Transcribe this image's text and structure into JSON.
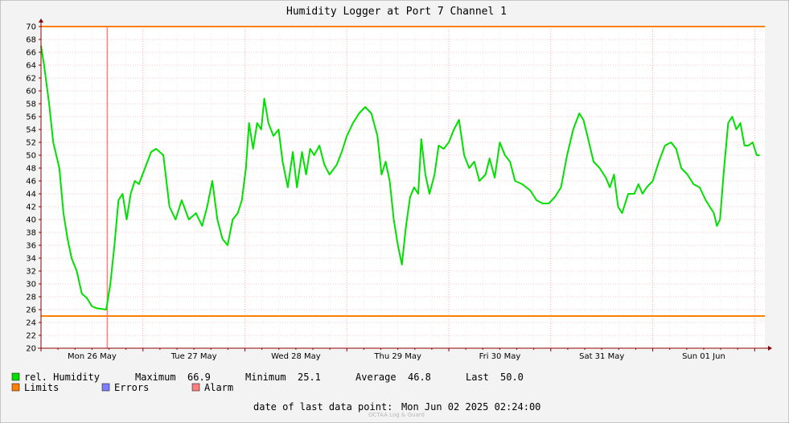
{
  "chart_data": {
    "type": "line",
    "title": "Humidity Logger at Port 7 Channel 1",
    "xlabel": "",
    "ylabel": "",
    "ylim": [
      20,
      70
    ],
    "y_ticks": [
      20,
      22,
      24,
      26,
      28,
      30,
      32,
      34,
      36,
      38,
      40,
      42,
      44,
      46,
      48,
      50,
      52,
      54,
      56,
      58,
      60,
      62,
      64,
      66,
      68,
      70
    ],
    "x_ticks": [
      {
        "label": "Mon 26 May",
        "day": 0.5
      },
      {
        "label": "Tue 27 May",
        "day": 1.5
      },
      {
        "label": "Wed 28 May",
        "day": 2.5
      },
      {
        "label": "Thu 29 May",
        "day": 3.5
      },
      {
        "label": "Fri 30 May",
        "day": 4.5
      },
      {
        "label": "Sat 31 May",
        "day": 5.5
      },
      {
        "label": "Sun 01 Jun",
        "day": 6.5
      }
    ],
    "x_range_days": [
      0,
      7.1
    ],
    "limits": {
      "upper": 70,
      "lower": 25,
      "color": "#ff7f00"
    },
    "alarm_marker_day": 0.65,
    "series": [
      {
        "name": "rel. Humidity",
        "color": "#00e000",
        "points": [
          [
            0.0,
            67.0
          ],
          [
            0.03,
            64.0
          ],
          [
            0.08,
            58.0
          ],
          [
            0.12,
            52.0
          ],
          [
            0.18,
            48.0
          ],
          [
            0.22,
            41.0
          ],
          [
            0.26,
            37.0
          ],
          [
            0.3,
            34.0
          ],
          [
            0.35,
            32.0
          ],
          [
            0.4,
            28.5
          ],
          [
            0.45,
            27.8
          ],
          [
            0.5,
            26.5
          ],
          [
            0.55,
            26.2
          ],
          [
            0.64,
            26.0
          ],
          [
            0.68,
            30.0
          ],
          [
            0.72,
            36.0
          ],
          [
            0.76,
            43.0
          ],
          [
            0.8,
            44.0
          ],
          [
            0.84,
            40.0
          ],
          [
            0.88,
            44.0
          ],
          [
            0.92,
            46.0
          ],
          [
            0.96,
            45.5
          ],
          [
            1.02,
            48.0
          ],
          [
            1.08,
            50.5
          ],
          [
            1.13,
            51.0
          ],
          [
            1.2,
            50.0
          ],
          [
            1.26,
            42.0
          ],
          [
            1.32,
            40.0
          ],
          [
            1.38,
            43.0
          ],
          [
            1.45,
            40.0
          ],
          [
            1.52,
            41.0
          ],
          [
            1.58,
            39.0
          ],
          [
            1.63,
            42.0
          ],
          [
            1.68,
            46.0
          ],
          [
            1.73,
            40.0
          ],
          [
            1.78,
            37.0
          ],
          [
            1.83,
            36.0
          ],
          [
            1.88,
            40.0
          ],
          [
            1.93,
            41.0
          ],
          [
            1.97,
            43.0
          ],
          [
            2.01,
            48.0
          ],
          [
            2.04,
            55.0
          ],
          [
            2.08,
            51.0
          ],
          [
            2.12,
            55.0
          ],
          [
            2.16,
            54.0
          ],
          [
            2.19,
            58.8
          ],
          [
            2.23,
            55.0
          ],
          [
            2.28,
            53.0
          ],
          [
            2.33,
            54.0
          ],
          [
            2.37,
            49.0
          ],
          [
            2.42,
            45.0
          ],
          [
            2.47,
            50.5
          ],
          [
            2.51,
            45.0
          ],
          [
            2.56,
            50.5
          ],
          [
            2.6,
            47.0
          ],
          [
            2.64,
            51.0
          ],
          [
            2.68,
            50.0
          ],
          [
            2.73,
            51.5
          ],
          [
            2.78,
            48.5
          ],
          [
            2.83,
            47.0
          ],
          [
            2.9,
            48.5
          ],
          [
            2.95,
            50.5
          ],
          [
            3.0,
            53.0
          ],
          [
            3.06,
            55.0
          ],
          [
            3.12,
            56.5
          ],
          [
            3.18,
            57.5
          ],
          [
            3.24,
            56.5
          ],
          [
            3.3,
            53.0
          ],
          [
            3.34,
            47.0
          ],
          [
            3.38,
            49.0
          ],
          [
            3.42,
            46.0
          ],
          [
            3.46,
            40.0
          ],
          [
            3.5,
            36.0
          ],
          [
            3.54,
            33.0
          ],
          [
            3.58,
            39.0
          ],
          [
            3.62,
            43.5
          ],
          [
            3.66,
            45.0
          ],
          [
            3.7,
            44.0
          ],
          [
            3.73,
            52.5
          ],
          [
            3.77,
            47.0
          ],
          [
            3.81,
            44.0
          ],
          [
            3.86,
            47.0
          ],
          [
            3.9,
            51.5
          ],
          [
            3.95,
            51.0
          ],
          [
            4.0,
            52.0
          ],
          [
            4.05,
            54.0
          ],
          [
            4.1,
            55.5
          ],
          [
            4.15,
            50.0
          ],
          [
            4.2,
            48.0
          ],
          [
            4.25,
            49.0
          ],
          [
            4.3,
            46.0
          ],
          [
            4.36,
            47.0
          ],
          [
            4.4,
            49.5
          ],
          [
            4.45,
            46.5
          ],
          [
            4.5,
            52.0
          ],
          [
            4.55,
            50.0
          ],
          [
            4.6,
            49.0
          ],
          [
            4.65,
            46.0
          ],
          [
            4.72,
            45.5
          ],
          [
            4.8,
            44.5
          ],
          [
            4.86,
            43.0
          ],
          [
            4.92,
            42.5
          ],
          [
            4.98,
            42.5
          ],
          [
            5.04,
            43.5
          ],
          [
            5.1,
            45.0
          ],
          [
            5.16,
            50.0
          ],
          [
            5.22,
            54.0
          ],
          [
            5.28,
            56.5
          ],
          [
            5.32,
            55.5
          ],
          [
            5.36,
            53.0
          ],
          [
            5.42,
            49.0
          ],
          [
            5.48,
            48.0
          ],
          [
            5.54,
            46.5
          ],
          [
            5.58,
            45.0
          ],
          [
            5.62,
            47.0
          ],
          [
            5.66,
            42.0
          ],
          [
            5.7,
            41.0
          ],
          [
            5.76,
            44.0
          ],
          [
            5.82,
            44.0
          ],
          [
            5.86,
            45.5
          ],
          [
            5.9,
            44.0
          ],
          [
            5.94,
            45.0
          ],
          [
            6.0,
            46.0
          ],
          [
            6.06,
            49.0
          ],
          [
            6.12,
            51.5
          ],
          [
            6.18,
            52.0
          ],
          [
            6.23,
            51.0
          ],
          [
            6.28,
            48.0
          ],
          [
            6.34,
            47.0
          ],
          [
            6.4,
            45.5
          ],
          [
            6.46,
            45.0
          ],
          [
            6.52,
            43.0
          ],
          [
            6.56,
            42.0
          ],
          [
            6.6,
            41.0
          ],
          [
            6.63,
            39.0
          ],
          [
            6.66,
            40.0
          ],
          [
            6.7,
            48.0
          ],
          [
            6.74,
            55.0
          ],
          [
            6.78,
            56.0
          ],
          [
            6.82,
            54.0
          ],
          [
            6.86,
            55.0
          ],
          [
            6.9,
            51.5
          ],
          [
            6.94,
            51.5
          ],
          [
            6.98,
            52.0
          ],
          [
            7.02,
            50.0
          ],
          [
            7.05,
            50.0
          ]
        ]
      },
      {
        "name": "Limits",
        "color": "#ff7f00"
      },
      {
        "name": "Errors",
        "color": "#7f7fff"
      },
      {
        "name": "Alarm",
        "color": "#ff7f7f"
      }
    ]
  },
  "legend": {
    "humidity_label": "rel. Humidity",
    "limits_label": "Limits",
    "errors_label": "Errors",
    "alarm_label": "Alarm",
    "max_label": "Maximum",
    "max_value": "66.9",
    "min_label": "Minimum",
    "min_value": "25.1",
    "avg_label": "Average",
    "avg_value": "46.8",
    "last_label": "Last",
    "last_value": "50.0"
  },
  "footer": {
    "last_point_label": "date of last data point:",
    "last_point_value": "Mon Jun 02 2025 02:24:00",
    "watermark": "OCTAA Log & Guard"
  },
  "colors": {
    "background": "#f3f3f3",
    "plot_background": "#ffffff",
    "grid_major": "#ff9a9a",
    "grid_minor": "#e0e0e0",
    "axis": "#8b0000"
  }
}
